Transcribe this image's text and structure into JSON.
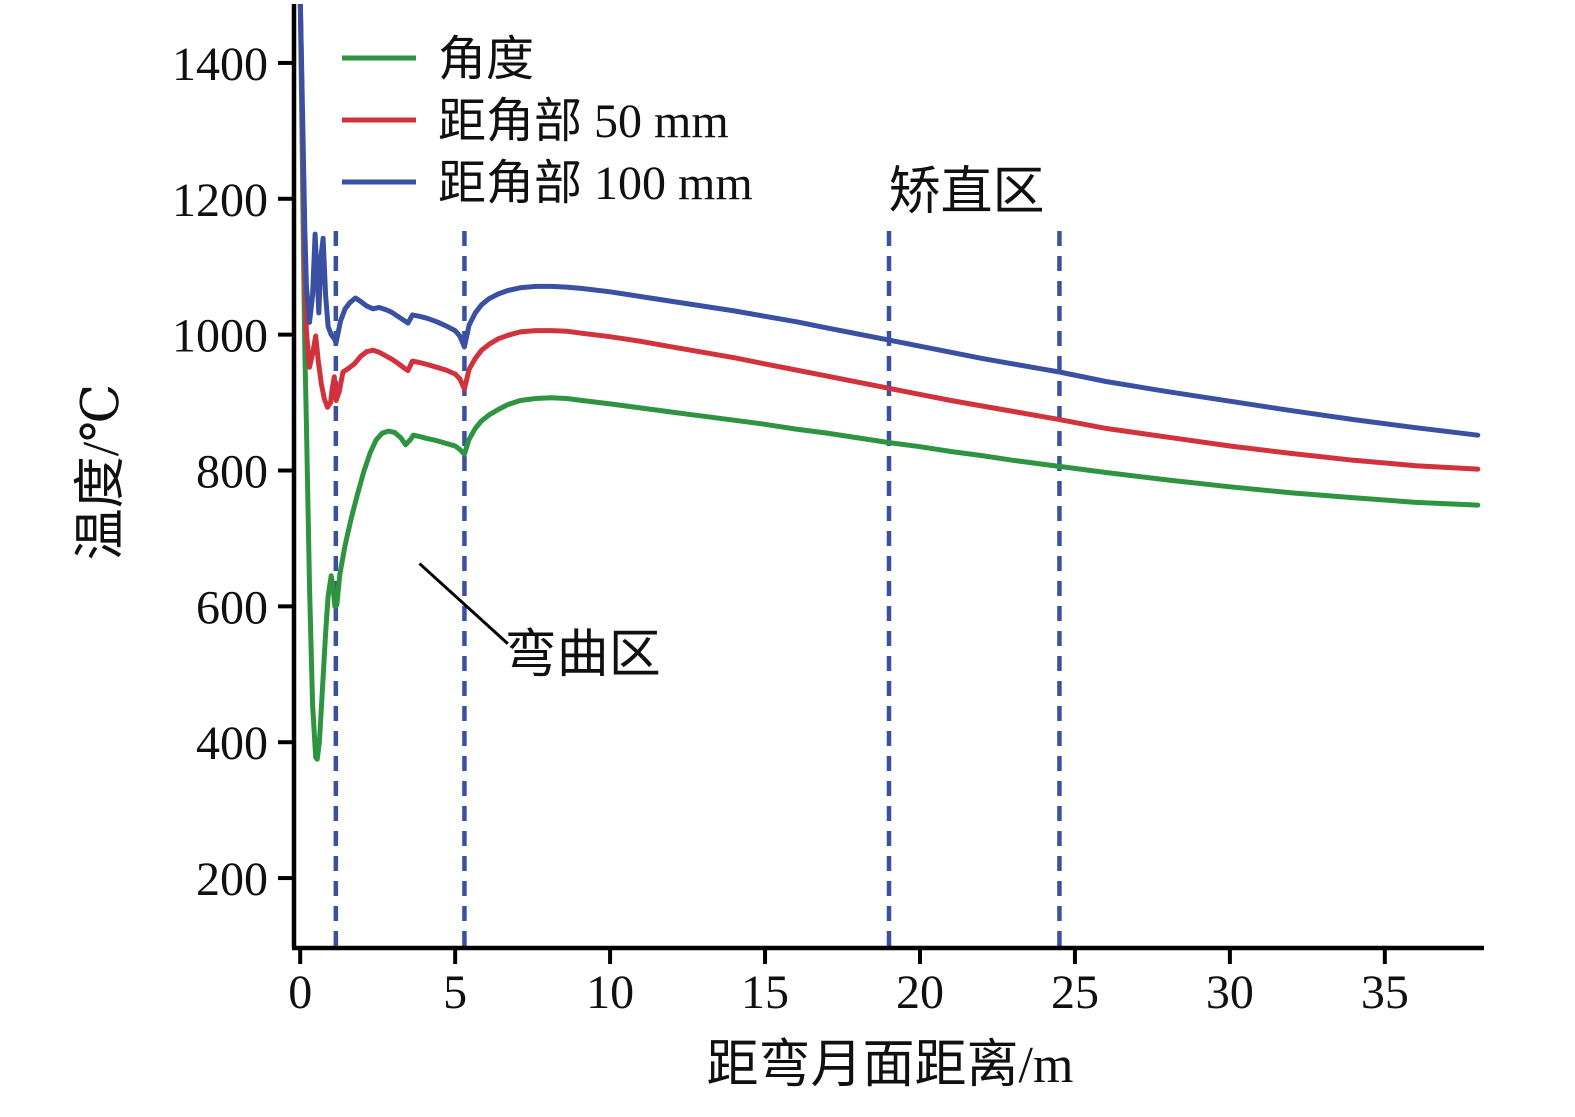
{
  "chart_data": {
    "type": "line",
    "title": "",
    "xlabel": "距弯月面距离/m",
    "ylabel": "温度/℃",
    "xlim": [
      -0.2,
      38.2
    ],
    "ylim": [
      100,
      1500
    ],
    "x_ticks": [
      0,
      5,
      10,
      15,
      20,
      25,
      30,
      35
    ],
    "y_ticks": [
      200,
      400,
      600,
      800,
      1000,
      1200,
      1400
    ],
    "grid": false,
    "legend_position": "top-left",
    "series": [
      {
        "name": "角度",
        "color": "#2f9440",
        "points": [
          [
            0,
            1500
          ],
          [
            0.05,
            1330
          ],
          [
            0.1,
            1140
          ],
          [
            0.15,
            980
          ],
          [
            0.2,
            870
          ],
          [
            0.3,
            630
          ],
          [
            0.4,
            455
          ],
          [
            0.5,
            378
          ],
          [
            0.55,
            375
          ],
          [
            0.62,
            400
          ],
          [
            0.72,
            480
          ],
          [
            0.82,
            560
          ],
          [
            0.9,
            615
          ],
          [
            1.0,
            645
          ],
          [
            1.06,
            628
          ],
          [
            1.12,
            600
          ],
          [
            1.18,
            602
          ],
          [
            1.28,
            648
          ],
          [
            1.45,
            690
          ],
          [
            1.65,
            730
          ],
          [
            1.85,
            765
          ],
          [
            2.05,
            798
          ],
          [
            2.25,
            825
          ],
          [
            2.45,
            845
          ],
          [
            2.65,
            855
          ],
          [
            2.85,
            858
          ],
          [
            3.05,
            856
          ],
          [
            3.25,
            848
          ],
          [
            3.4,
            838
          ],
          [
            3.55,
            845
          ],
          [
            3.65,
            852
          ],
          [
            3.85,
            850
          ],
          [
            4.1,
            847
          ],
          [
            4.4,
            844
          ],
          [
            4.7,
            840
          ],
          [
            5.0,
            836
          ],
          [
            5.15,
            831
          ],
          [
            5.3,
            824
          ],
          [
            5.45,
            846
          ],
          [
            5.65,
            862
          ],
          [
            5.85,
            873
          ],
          [
            6.1,
            882
          ],
          [
            6.4,
            890
          ],
          [
            6.7,
            897
          ],
          [
            7.1,
            903
          ],
          [
            7.6,
            906
          ],
          [
            8.1,
            907
          ],
          [
            8.6,
            906
          ],
          [
            9.1,
            903
          ],
          [
            10,
            898
          ],
          [
            11,
            892
          ],
          [
            12,
            886
          ],
          [
            13,
            880
          ],
          [
            14,
            874
          ],
          [
            15,
            868
          ],
          [
            16,
            861
          ],
          [
            17,
            855
          ],
          [
            18,
            848
          ],
          [
            19,
            841
          ],
          [
            20,
            835
          ],
          [
            21,
            828
          ],
          [
            22,
            822
          ],
          [
            23,
            815
          ],
          [
            24,
            809
          ],
          [
            24.5,
            806
          ],
          [
            26,
            797
          ],
          [
            28,
            786
          ],
          [
            30,
            776
          ],
          [
            32,
            767
          ],
          [
            34,
            760
          ],
          [
            36,
            753
          ],
          [
            38,
            749
          ]
        ]
      },
      {
        "name": "距角部 50 mm",
        "color": "#d2323c",
        "points": [
          [
            0,
            1500
          ],
          [
            0.05,
            1370
          ],
          [
            0.1,
            1220
          ],
          [
            0.15,
            1090
          ],
          [
            0.2,
            1005
          ],
          [
            0.3,
            952
          ],
          [
            0.4,
            972
          ],
          [
            0.5,
            998
          ],
          [
            0.58,
            962
          ],
          [
            0.68,
            928
          ],
          [
            0.78,
            905
          ],
          [
            0.88,
            893
          ],
          [
            0.98,
            900
          ],
          [
            1.04,
            922
          ],
          [
            1.1,
            938
          ],
          [
            1.16,
            903
          ],
          [
            1.26,
            916
          ],
          [
            1.38,
            945
          ],
          [
            1.55,
            950
          ],
          [
            1.75,
            957
          ],
          [
            1.95,
            968
          ],
          [
            2.15,
            975
          ],
          [
            2.35,
            977
          ],
          [
            2.55,
            974
          ],
          [
            2.75,
            969
          ],
          [
            2.95,
            964
          ],
          [
            3.15,
            958
          ],
          [
            3.35,
            951
          ],
          [
            3.48,
            947
          ],
          [
            3.62,
            961
          ],
          [
            3.85,
            959
          ],
          [
            4.1,
            956
          ],
          [
            4.4,
            952
          ],
          [
            4.7,
            948
          ],
          [
            5.0,
            942
          ],
          [
            5.15,
            935
          ],
          [
            5.3,
            920
          ],
          [
            5.45,
            949
          ],
          [
            5.65,
            965
          ],
          [
            5.85,
            977
          ],
          [
            6.1,
            986
          ],
          [
            6.4,
            994
          ],
          [
            6.7,
            999
          ],
          [
            7.1,
            1004
          ],
          [
            7.6,
            1006
          ],
          [
            8.1,
            1006
          ],
          [
            8.6,
            1005
          ],
          [
            9.1,
            1002
          ],
          [
            10,
            997
          ],
          [
            11,
            990
          ],
          [
            12,
            982
          ],
          [
            13,
            974
          ],
          [
            14,
            966
          ],
          [
            15,
            957
          ],
          [
            16,
            948
          ],
          [
            17,
            939
          ],
          [
            18,
            930
          ],
          [
            19,
            921
          ],
          [
            20,
            912
          ],
          [
            21,
            903
          ],
          [
            22,
            895
          ],
          [
            23,
            887
          ],
          [
            24,
            879
          ],
          [
            24.5,
            875
          ],
          [
            26,
            862
          ],
          [
            28,
            849
          ],
          [
            30,
            836
          ],
          [
            32,
            825
          ],
          [
            34,
            815
          ],
          [
            36,
            807
          ],
          [
            38,
            802
          ]
        ]
      },
      {
        "name": "距角部 100 mm",
        "color": "#3a51a3",
        "points": [
          [
            0,
            1500
          ],
          [
            0.05,
            1390
          ],
          [
            0.1,
            1270
          ],
          [
            0.15,
            1155
          ],
          [
            0.2,
            1072
          ],
          [
            0.3,
            1018
          ],
          [
            0.4,
            1058
          ],
          [
            0.48,
            1148
          ],
          [
            0.54,
            1095
          ],
          [
            0.6,
            1032
          ],
          [
            0.68,
            1118
          ],
          [
            0.74,
            1142
          ],
          [
            0.82,
            1058
          ],
          [
            0.9,
            1012
          ],
          [
            1.0,
            1000
          ],
          [
            1.1,
            994
          ],
          [
            1.16,
            988
          ],
          [
            1.3,
            1020
          ],
          [
            1.45,
            1038
          ],
          [
            1.6,
            1047
          ],
          [
            1.78,
            1054
          ],
          [
            1.95,
            1049
          ],
          [
            2.15,
            1042
          ],
          [
            2.35,
            1038
          ],
          [
            2.55,
            1040
          ],
          [
            2.75,
            1037
          ],
          [
            2.95,
            1033
          ],
          [
            3.15,
            1027
          ],
          [
            3.35,
            1021
          ],
          [
            3.48,
            1017
          ],
          [
            3.62,
            1029
          ],
          [
            3.85,
            1027
          ],
          [
            4.1,
            1024
          ],
          [
            4.4,
            1019
          ],
          [
            4.7,
            1013
          ],
          [
            5.0,
            1006
          ],
          [
            5.15,
            998
          ],
          [
            5.3,
            982
          ],
          [
            5.45,
            1014
          ],
          [
            5.65,
            1032
          ],
          [
            5.85,
            1044
          ],
          [
            6.1,
            1053
          ],
          [
            6.4,
            1060
          ],
          [
            6.7,
            1065
          ],
          [
            7.1,
            1069
          ],
          [
            7.6,
            1071
          ],
          [
            8.1,
            1071
          ],
          [
            8.6,
            1070
          ],
          [
            9.1,
            1068
          ],
          [
            10,
            1063
          ],
          [
            11,
            1056
          ],
          [
            12,
            1049
          ],
          [
            13,
            1042
          ],
          [
            14,
            1035
          ],
          [
            15,
            1027
          ],
          [
            16,
            1019
          ],
          [
            17,
            1010
          ],
          [
            18,
            1001
          ],
          [
            19,
            992
          ],
          [
            20,
            983
          ],
          [
            21,
            974
          ],
          [
            22,
            965
          ],
          [
            23,
            957
          ],
          [
            24,
            949
          ],
          [
            24.5,
            945
          ],
          [
            26,
            931
          ],
          [
            28,
            916
          ],
          [
            30,
            902
          ],
          [
            32,
            888
          ],
          [
            34,
            875
          ],
          [
            36,
            863
          ],
          [
            38,
            852
          ]
        ]
      }
    ],
    "reference_lines": {
      "color": "#3a51a3",
      "style": "dashed",
      "x_values": [
        1.15,
        5.3,
        19.0,
        24.5
      ],
      "y_top": 1160,
      "y_bottom": 100
    },
    "annotations": [
      {
        "text": "矫直区",
        "x": 21.5,
        "y": 1185,
        "anchor": "middle"
      },
      {
        "text": "弯曲区",
        "x": 6.6,
        "y": 503,
        "anchor": "start",
        "leader": {
          "x1": 3.85,
          "y1": 663,
          "x2": 6.7,
          "y2": 545
        }
      }
    ]
  }
}
